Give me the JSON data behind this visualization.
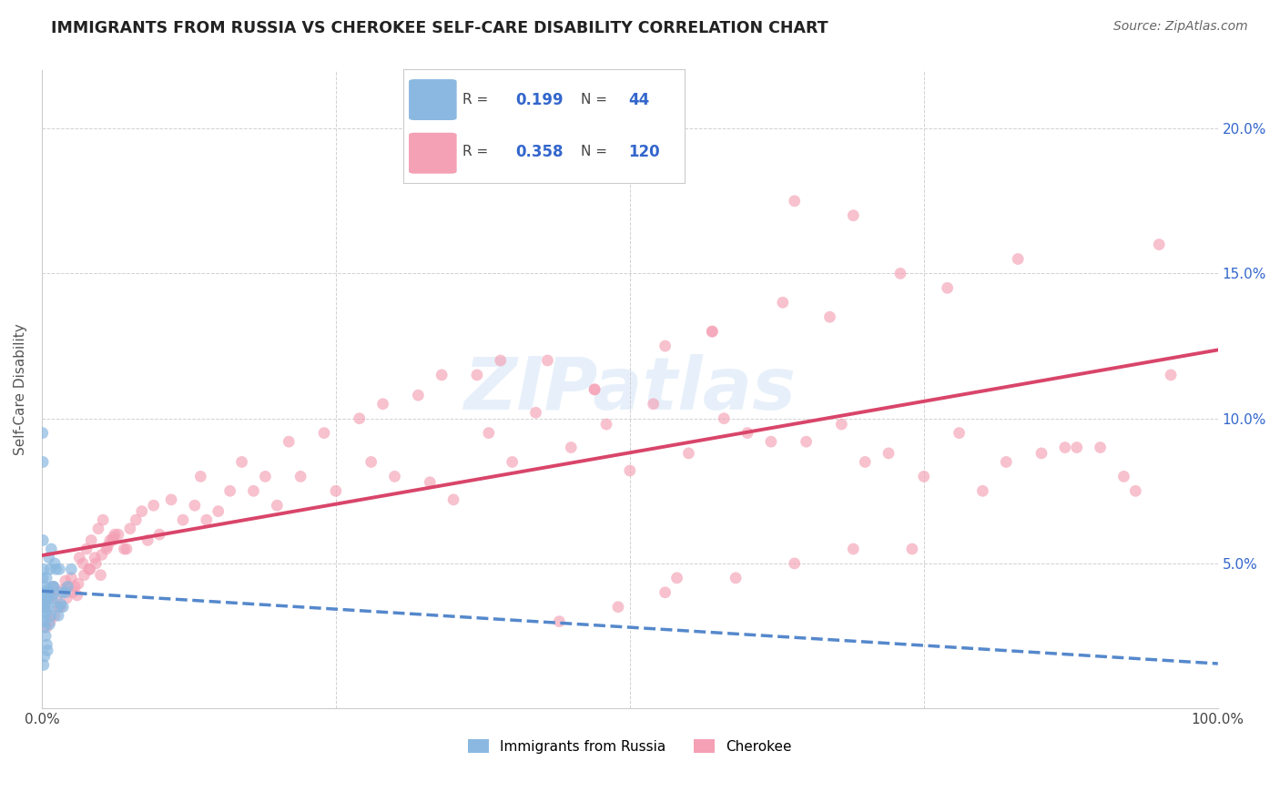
{
  "title": "IMMIGRANTS FROM RUSSIA VS CHEROKEE SELF-CARE DISABILITY CORRELATION CHART",
  "source": "Source: ZipAtlas.com",
  "ylabel": "Self-Care Disability",
  "xlim": [
    0,
    100
  ],
  "ylim": [
    0,
    22
  ],
  "legend_R1": "0.199",
  "legend_N1": "44",
  "legend_R2": "0.358",
  "legend_N2": "120",
  "legend_label1": "Immigrants from Russia",
  "legend_label2": "Cherokee",
  "color_blue": "#8ab8e0",
  "color_pink": "#f4a0b5",
  "color_line_blue": "#5588cc",
  "color_line_pink": "#d9456a",
  "color_r_value": "#3366cc",
  "background_color": "#ffffff",
  "russia_x": [
    0.05,
    0.08,
    0.1,
    0.12,
    0.15,
    0.18,
    0.2,
    0.22,
    0.25,
    0.28,
    0.3,
    0.32,
    0.35,
    0.38,
    0.4,
    0.42,
    0.45,
    0.48,
    0.5,
    0.55,
    0.6,
    0.65,
    0.7,
    0.75,
    0.8,
    0.85,
    0.9,
    0.95,
    1.0,
    1.1,
    1.2,
    1.3,
    1.4,
    1.5,
    1.6,
    1.7,
    1.8,
    2.0,
    2.2,
    2.5,
    0.06,
    0.09,
    0.14,
    0.23
  ],
  "russia_y": [
    3.8,
    4.5,
    5.8,
    3.2,
    4.8,
    3.5,
    3.0,
    2.8,
    4.2,
    3.6,
    3.9,
    2.5,
    4.0,
    3.3,
    4.5,
    2.2,
    3.8,
    2.0,
    4.1,
    3.5,
    5.2,
    2.9,
    4.8,
    3.2,
    5.5,
    3.8,
    3.9,
    4.2,
    4.2,
    5.0,
    4.8,
    3.5,
    3.2,
    4.8,
    3.6,
    4.0,
    3.5,
    4.0,
    4.2,
    4.8,
    9.5,
    8.5,
    1.5,
    1.8
  ],
  "cherokee_x": [
    0.3,
    0.5,
    0.8,
    1.0,
    1.2,
    1.5,
    1.8,
    2.0,
    2.2,
    2.5,
    2.8,
    3.0,
    3.2,
    3.5,
    3.8,
    4.0,
    4.2,
    4.5,
    4.8,
    5.0,
    5.2,
    5.5,
    5.8,
    6.0,
    6.2,
    6.5,
    7.0,
    7.5,
    8.0,
    8.5,
    9.0,
    10.0,
    11.0,
    12.0,
    13.0,
    14.0,
    15.0,
    16.0,
    17.0,
    18.0,
    19.0,
    20.0,
    22.0,
    24.0,
    25.0,
    27.0,
    28.0,
    30.0,
    32.0,
    33.0,
    35.0,
    37.0,
    38.0,
    40.0,
    42.0,
    43.0,
    44.0,
    45.0,
    47.0,
    48.0,
    49.0,
    50.0,
    52.0,
    53.0,
    54.0,
    55.0,
    57.0,
    58.0,
    59.0,
    60.0,
    62.0,
    63.0,
    64.0,
    65.0,
    67.0,
    68.0,
    69.0,
    70.0,
    72.0,
    73.0,
    74.0,
    75.0,
    77.0,
    78.0,
    80.0,
    82.0,
    83.0,
    85.0,
    87.0,
    88.0,
    90.0,
    92.0,
    93.0,
    95.0,
    96.0,
    0.4,
    0.7,
    1.1,
    1.6,
    2.1,
    2.6,
    3.1,
    3.6,
    4.1,
    4.6,
    5.1,
    5.6,
    6.1,
    7.2,
    9.5,
    13.5,
    21.0,
    29.0,
    34.0,
    39.0,
    47.0,
    53.0,
    57.0,
    64.0,
    69.0
  ],
  "cherokee_y": [
    3.5,
    3.8,
    4.0,
    4.2,
    3.8,
    3.5,
    4.1,
    4.4,
    4.2,
    4.5,
    4.2,
    3.9,
    5.2,
    5.0,
    5.5,
    4.8,
    5.8,
    5.2,
    6.2,
    4.6,
    6.5,
    5.5,
    5.8,
    5.8,
    6.0,
    6.0,
    5.5,
    6.2,
    6.5,
    6.8,
    5.8,
    6.0,
    7.2,
    6.5,
    7.0,
    6.5,
    6.8,
    7.5,
    8.5,
    7.5,
    8.0,
    7.0,
    8.0,
    9.5,
    7.5,
    10.0,
    8.5,
    8.0,
    10.8,
    7.8,
    7.2,
    11.5,
    9.5,
    8.5,
    10.2,
    12.0,
    3.0,
    9.0,
    11.0,
    9.8,
    3.5,
    8.2,
    10.5,
    4.0,
    4.5,
    8.8,
    13.0,
    10.0,
    4.5,
    9.5,
    9.2,
    14.0,
    5.0,
    9.2,
    13.5,
    9.8,
    5.5,
    8.5,
    8.8,
    15.0,
    5.5,
    8.0,
    14.5,
    9.5,
    7.5,
    8.5,
    15.5,
    8.8,
    9.0,
    9.0,
    9.0,
    8.0,
    7.5,
    16.0,
    11.5,
    2.8,
    3.0,
    3.2,
    3.5,
    3.8,
    4.0,
    4.3,
    4.6,
    4.8,
    5.0,
    5.3,
    5.6,
    5.9,
    5.5,
    7.0,
    8.0,
    9.2,
    10.5,
    11.5,
    12.0,
    11.0,
    12.5,
    13.0,
    17.5,
    17.0
  ]
}
